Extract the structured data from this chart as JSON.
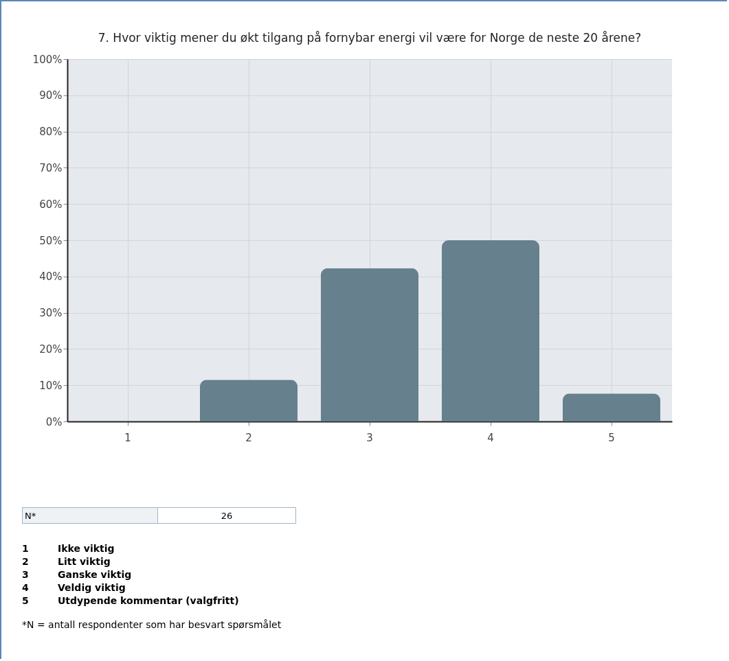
{
  "chart_data": {
    "type": "bar",
    "title": "7. Hvor viktig mener du økt tilgang på fornybar energi vil være for Norge de neste 20 årene?",
    "categories": [
      "1",
      "2",
      "3",
      "4",
      "5"
    ],
    "values": [
      0,
      11.5,
      42.3,
      50,
      7.7
    ],
    "color": "#66808d",
    "ylim": [
      0,
      100
    ],
    "yticks": [
      {
        "value": 0,
        "label": "0%"
      },
      {
        "value": 10,
        "label": "10%"
      },
      {
        "value": 20,
        "label": "20%"
      },
      {
        "value": 30,
        "label": "30%"
      },
      {
        "value": 40,
        "label": "40%"
      },
      {
        "value": 50,
        "label": "50%"
      },
      {
        "value": 60,
        "label": "60%"
      },
      {
        "value": 70,
        "label": "70%"
      },
      {
        "value": 80,
        "label": "80%"
      },
      {
        "value": 90,
        "label": "90%"
      },
      {
        "value": 100,
        "label": "100%"
      }
    ],
    "grid": true,
    "annotations": [
      "N*",
      "26",
      "Ikke viktig",
      "Litt viktig",
      "Ganske viktig",
      "Veldig viktig",
      "Utdypende kommentar (valgfritt)",
      "*N = antall respondenter som har besvart spørsmålet"
    ]
  }
}
